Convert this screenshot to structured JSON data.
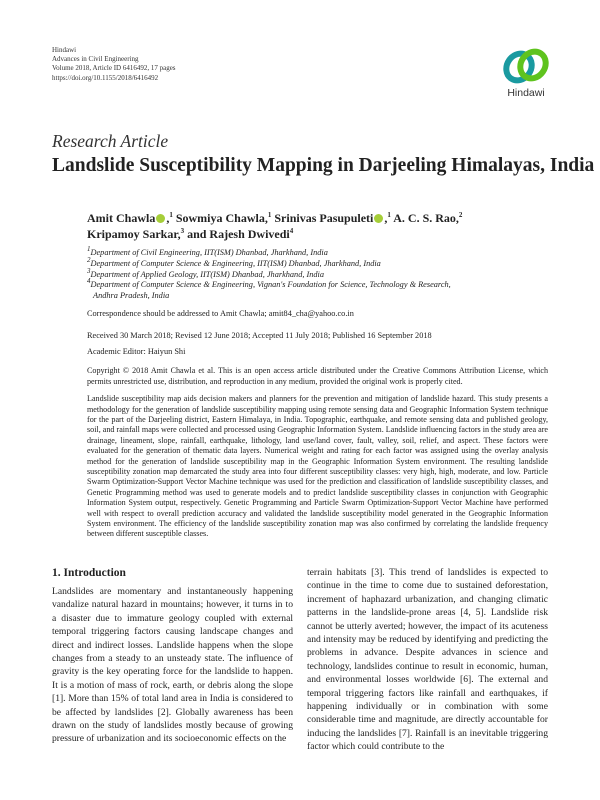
{
  "header": {
    "publisher": "Hindawi",
    "journal": "Advances in Civil Engineering",
    "volume": "Volume 2018, Article ID 6416492, 17 pages",
    "doi": "https://doi.org/10.1155/2018/6416492",
    "logo_text": "Hindawi",
    "logo_colors": {
      "teal": "#1a9aa0",
      "green": "#5fc31e",
      "dark": "#16556a"
    }
  },
  "article": {
    "kind": "Research Article",
    "title": "Landslide Susceptibility Mapping in Darjeeling Himalayas, India",
    "authors": [
      {
        "name": "Amit Chawla",
        "orcid": true,
        "aff": "1",
        "sep": ", "
      },
      {
        "name": "Sowmiya Chawla",
        "orcid": false,
        "aff": "1",
        "sep": ", "
      },
      {
        "name": "Srinivas Pasupuleti",
        "orcid": true,
        "aff": "1",
        "sep": ", "
      },
      {
        "name": "A. C. S. Rao",
        "orcid": false,
        "aff": "2",
        "sep": ""
      },
      {
        "name": "Kripamoy Sarkar",
        "orcid": false,
        "aff": "3",
        "sep": ", and "
      },
      {
        "name": "Rajesh Dwivedi",
        "orcid": false,
        "aff": "4",
        "sep": ""
      }
    ],
    "affiliations": [
      {
        "num": "1",
        "text": "Department of Civil Engineering, IIT(ISM) Dhanbad, Jharkhand, India"
      },
      {
        "num": "2",
        "text": "Department of Computer Science & Engineering, IIT(ISM) Dhanbad, Jharkhand, India"
      },
      {
        "num": "3",
        "text": "Department of Applied Geology, IIT(ISM) Dhanbad, Jharkhand, India"
      },
      {
        "num": "4",
        "text": "Department of Computer Science & Engineering, Vignan's Foundation for Science, Technology & Research,",
        "cont": "Andhra Pradesh, India"
      }
    ],
    "correspondence": "Correspondence should be addressed to Amit Chawla; amit84_cha@yahoo.co.in",
    "dates": "Received 30 March 2018; Revised 12 June 2018; Accepted 11 July 2018; Published 16 September 2018",
    "editor": "Academic Editor: Haiyun Shi",
    "copyright": "Copyright © 2018 Amit Chawla et al. This is an open access article distributed under the Creative Commons Attribution License, which permits unrestricted use, distribution, and reproduction in any medium, provided the original work is properly cited.",
    "abstract": "Landslide susceptibility map aids decision makers and planners for the prevention and mitigation of landslide hazard. This study presents a methodology for the generation of landslide susceptibility mapping using remote sensing data and Geographic Information System technique for the part of the Darjeeling district, Eastern Himalaya, in India. Topographic, earthquake, and remote sensing data and published geology, soil, and rainfall maps were collected and processed using Geographic Information System. Landslide influencing factors in the study area are drainage, lineament, slope, rainfall, earthquake, lithology, land use/land cover, fault, valley, soil, relief, and aspect. These factors were evaluated for the generation of thematic data layers. Numerical weight and rating for each factor was assigned using the overlay analysis method for the generation of landslide susceptibility map in the Geographic Information System environment. The resulting landslide susceptibility zonation map demarcated the study area into four different susceptibility classes: very high, high, moderate, and low. Particle Swarm Optimization-Support Vector Machine technique was used for the prediction and classification of landslide susceptibility classes, and Genetic Programming method was used to generate models and to predict landslide susceptibility classes in conjunction with Geographic Information System output, respectively. Genetic Programming and Particle Swarm Optimization-Support Vector Machine have performed well with respect to overall prediction accuracy and validated the landslide susceptibility model generated in the Geographic Information System environment. The efficiency of the landslide susceptibility zonation map was also confirmed by correlating the landslide frequency between different susceptible classes."
  },
  "intro": {
    "heading": "1. Introduction",
    "left": "Landslides are momentary and instantaneously happening vandalize natural hazard in mountains; however, it turns in to a disaster due to immature geology coupled with external temporal triggering factors causing landscape changes and direct and indirect losses. Landslide happens when the slope changes from a steady to an unsteady state. The influence of gravity is the key operating force for the landslide to happen. It is a motion of mass of rock, earth, or debris along the slope [1]. More than 15% of total land area in India is considered to be affected by landslides [2]. Globally awareness has been drawn on the study of landslides mostly because of growing pressure of urbanization and its socioeconomic effects on the",
    "right": "terrain habitats [3]. This trend of landslides is expected to continue in the time to come due to sustained deforestation, increment of haphazard urbanization, and changing climatic patterns in the landslide-prone areas [4, 5]. Landslide risk cannot be utterly averted; however, the impact of its acuteness and intensity may be reduced by identifying and predicting the problems in advance. Despite advances in science and technology, landslides continue to result in economic, human, and environmental losses worldwide [6]. The external and temporal triggering factors like rainfall and earthquakes, if happening individually or in combination with some considerable time and magnitude, are directly accountable for inducing the landslides [7]. Rainfall is an inevitable triggering factor which could contribute to the"
  }
}
